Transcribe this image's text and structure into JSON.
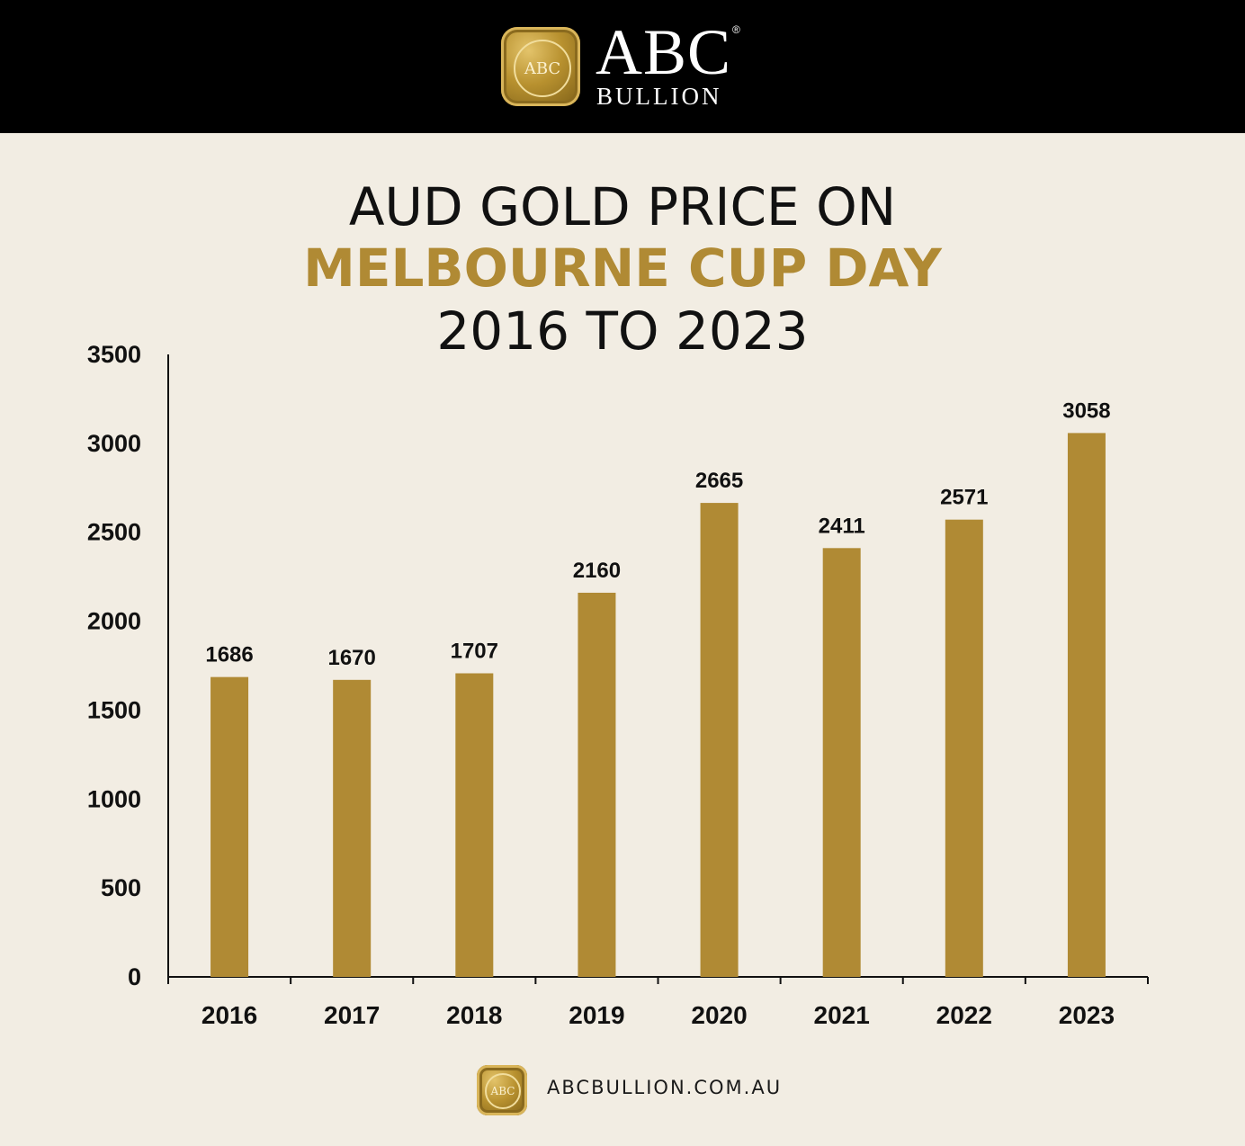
{
  "brand": {
    "badge_text": "ABC",
    "name": "ABC",
    "registered": "®",
    "sub": "BULLION"
  },
  "colors": {
    "header": "#000000",
    "background": "#f2ede3",
    "bar": "#b08a34",
    "text": "#111111"
  },
  "chart_data": {
    "type": "bar",
    "title_line1": "AUD GOLD PRICE ON",
    "title_line2": "MELBOURNE CUP DAY",
    "title_line3": "2016 TO 2023",
    "xlabel": "",
    "ylabel": "",
    "categories": [
      "2016",
      "2017",
      "2018",
      "2019",
      "2020",
      "2021",
      "2022",
      "2023"
    ],
    "values": [
      1686,
      1670,
      1707,
      2160,
      2665,
      2411,
      2571,
      3058
    ],
    "data_labels": [
      "1686",
      "1670",
      "1707",
      "2160",
      "2665",
      "2411",
      "2571",
      "3058"
    ],
    "ylim": [
      0,
      3500
    ],
    "yticks": [
      0,
      500,
      1000,
      1500,
      2000,
      2500,
      3000,
      3500
    ],
    "grid": false,
    "legend": "none"
  },
  "footer": {
    "badge_text": "ABC",
    "url": "ABCBULLION.COM.AU"
  }
}
